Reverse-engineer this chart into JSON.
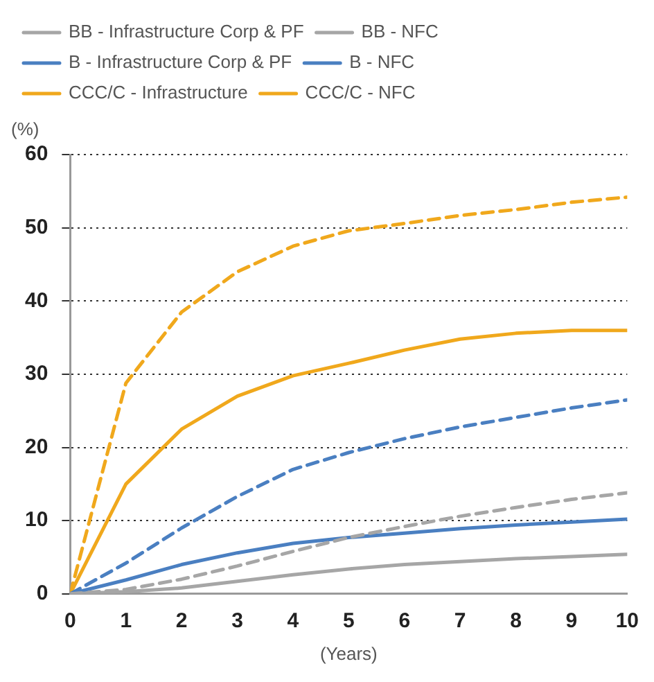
{
  "chart_data": {
    "type": "line",
    "ylabel": "(%)",
    "xlabel": "(Years)",
    "x": [
      0,
      1,
      2,
      3,
      4,
      5,
      6,
      7,
      8,
      9,
      10
    ],
    "series": [
      {
        "name": "BB - Infrastructure Corp & PF",
        "color": "#a6a6a6",
        "line_style": "solid",
        "values": [
          0,
          0.3,
          0.8,
          1.7,
          2.6,
          3.4,
          4.0,
          4.4,
          4.8,
          5.1,
          5.4
        ]
      },
      {
        "name": "BB - NFC",
        "color": "#a6a6a6",
        "line_style": "dashed",
        "values": [
          0,
          0.6,
          2.0,
          3.8,
          5.8,
          7.7,
          9.2,
          10.6,
          11.8,
          12.9,
          13.8
        ]
      },
      {
        "name": "B - Infrastructure Corp & PF",
        "color": "#4a7fc1",
        "line_style": "solid",
        "values": [
          0,
          1.9,
          4.0,
          5.6,
          6.9,
          7.7,
          8.3,
          8.9,
          9.4,
          9.8,
          10.2
        ]
      },
      {
        "name": "B - NFC",
        "color": "#4a7fc1",
        "line_style": "dashed",
        "values": [
          0,
          4.2,
          9.0,
          13.3,
          17.0,
          19.3,
          21.2,
          22.8,
          24.1,
          25.4,
          26.5
        ]
      },
      {
        "name": "CCC/C - Infrastructure",
        "color": "#f0a81c",
        "line_style": "solid",
        "values": [
          0,
          15.0,
          22.5,
          27.0,
          29.8,
          31.5,
          33.3,
          34.8,
          35.6,
          36.0,
          36.0
        ]
      },
      {
        "name": "CCC/C - NFC",
        "color": "#f0a81c",
        "line_style": "dashed",
        "values": [
          0,
          28.8,
          38.5,
          44.0,
          47.5,
          49.6,
          50.6,
          51.7,
          52.5,
          53.5,
          54.2
        ]
      }
    ],
    "xlim": [
      0,
      10
    ],
    "xticks": [
      0,
      1,
      2,
      3,
      4,
      5,
      6,
      7,
      8,
      9,
      10
    ],
    "ylim": [
      0,
      60
    ],
    "yticks": [
      0,
      10,
      20,
      30,
      40,
      50,
      60
    ],
    "grid": "y",
    "legend": "top",
    "marker": "none"
  }
}
